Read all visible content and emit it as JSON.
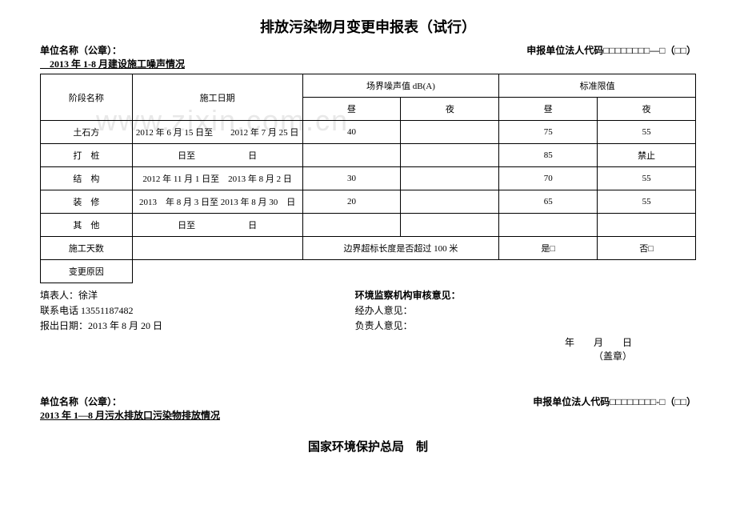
{
  "watermark": "www.zixin.com.cn",
  "doc": {
    "title": "排放污染物月变更申报表（试行）",
    "unit_label": "单位名称（公章）：",
    "legal_code_label": "申报单位法人代码□□□□□□□□—□（□□）",
    "subtitle": "　2013 年 1-8 月建设施工噪声情况"
  },
  "table": {
    "h_phase": "阶段名称",
    "h_date": "施工日期",
    "h_noise": "场界噪声值 dB(A)",
    "h_limit": "标准限值",
    "h_day": "昼",
    "h_night": "夜",
    "rows": [
      {
        "phase": "土石方",
        "date": "2012 年 6 月 15 日至　　2012 年 7 月 25 日",
        "nd": "40",
        "nn": "",
        "ld": "75",
        "ln": "55"
      },
      {
        "phase": "打　桩",
        "date": "日至　　　　　　日",
        "nd": "",
        "nn": "",
        "ld": "85",
        "ln": "禁止"
      },
      {
        "phase": "结　构",
        "date": "2012 年 11 月 1 日至　2013 年 8 月 2 日",
        "nd": "30",
        "nn": "",
        "ld": "70",
        "ln": "55"
      },
      {
        "phase": "装　修",
        "date": "2013　年 8 月 3 日至 2013 年 8 月 30　日",
        "nd": "20",
        "nn": "",
        "ld": "65",
        "ln": "55"
      },
      {
        "phase": "其　他",
        "date": "日至　　　　　　日",
        "nd": "",
        "nn": "",
        "ld": "",
        "ln": ""
      }
    ],
    "days_label": "施工天数",
    "exceed_label": "边界超标长度是否超过 100 米",
    "yes_label": "是□",
    "no_label": "否□",
    "reason_label": "变更原因"
  },
  "footer": {
    "l1": "填表人：徐洋",
    "l2": "联系电话 13551187482",
    "l3": "报出日期：2013 年 8 月 20 日",
    "r1": "环境监察机构审核意见：",
    "r2": "经办人意见：",
    "r3": "负责人意见：",
    "date_line": "年　　月　　日",
    "stamp": "（盖章）"
  },
  "section2": {
    "unit_label": "单位名称（公章）：",
    "legal_code_label": "申报单位法人代码□□□□□□□□-□（□□）",
    "subtitle": "2013 年 1—8 月污水排放口污染物排放情况",
    "bottom": "国家环境保护总局　制"
  }
}
